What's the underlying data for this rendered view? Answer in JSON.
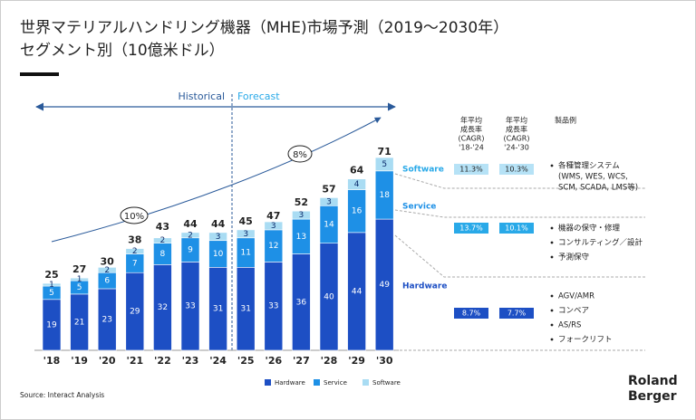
{
  "chart_data": {
    "type": "bar",
    "stacked": true,
    "title": "世界マテリアルハンドリング機器（MHE)市場予測（2019～2030年）",
    "subtitle": "セグメント別（10億米ドル）",
    "categories": [
      "'18",
      "'19",
      "'20",
      "'21",
      "'22",
      "'23",
      "'24",
      "'25",
      "'26",
      "'27",
      "'28",
      "'29",
      "'30"
    ],
    "series": [
      {
        "name": "Hardware",
        "color": "#1d4fc4",
        "values": [
          19,
          21,
          23,
          29,
          32,
          33,
          31,
          31,
          33,
          36,
          40,
          44,
          49
        ]
      },
      {
        "name": "Service",
        "color": "#1e90e6",
        "values": [
          5,
          5,
          6,
          7,
          8,
          9,
          10,
          11,
          12,
          13,
          14,
          16,
          18
        ]
      },
      {
        "name": "Software",
        "color": "#a9dcf3",
        "values": [
          1,
          1,
          2,
          2,
          2,
          2,
          3,
          3,
          3,
          3,
          3,
          4,
          5
        ]
      }
    ],
    "totals": [
      25,
      27,
      30,
      38,
      43,
      44,
      44,
      45,
      47,
      52,
      57,
      64,
      71
    ],
    "period_labels": [
      "Historical",
      "Forecast"
    ],
    "growth_labels": [
      "10%",
      "8%"
    ],
    "source": "Source: Interact Analysis",
    "segment_table": {
      "headers": [
        [
          "年平均",
          "成長率",
          "(CAGR)",
          "'18-'24"
        ],
        [
          "年平均",
          "成長率",
          "(CAGR)",
          "'24-'30"
        ],
        [
          "製品例"
        ]
      ],
      "rows": [
        {
          "segment": "Software",
          "cagr": [
            "11.3%",
            "10.3%"
          ],
          "products": [
            [
              "各種管理システム",
              "(WMS, WES, WCS,",
              "SCM, SCADA, LMS等)"
            ]
          ]
        },
        {
          "segment": "Service",
          "cagr": [
            "13.7%",
            "10.1%"
          ],
          "products": [
            [
              "機器の保守・修理"
            ],
            [
              "コンサルティング／設計"
            ],
            [
              "予測保守"
            ]
          ]
        },
        {
          "segment": "Hardware",
          "cagr": [
            "8.7%",
            "7.7%"
          ],
          "products": [
            [
              "AGV/AMR"
            ],
            [
              "コンベア"
            ],
            [
              "AS/RS"
            ],
            [
              "フォークリフト"
            ]
          ]
        }
      ]
    }
  },
  "logo": [
    "Roland",
    "Berger"
  ]
}
